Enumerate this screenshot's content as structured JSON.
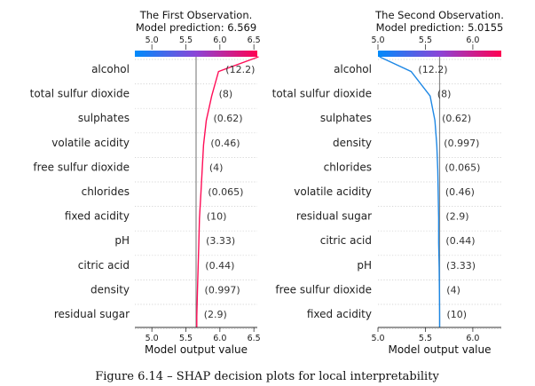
{
  "caption": "Figure 6.14 – SHAP decision plots for local interpretability",
  "chart_data": [
    {
      "type": "line",
      "title_line1": "The First Observation.",
      "title_line2": "Model prediction: 6.569",
      "xlabel": "Model output value",
      "xlim": [
        4.75,
        6.55
      ],
      "xticks": [
        5.0,
        5.5,
        6.0,
        6.5
      ],
      "tick_labels": [
        "5.0",
        "5.5",
        "6.0",
        "6.5"
      ],
      "base_value": 5.65,
      "prediction": 6.569,
      "line_color": "#ff0d57",
      "features": [
        "alcohol",
        "total sulfur dioxide",
        "sulphates",
        "volatile acidity",
        "free sulfur dioxide",
        "chlorides",
        "fixed acidity",
        "pH",
        "citric acid",
        "density",
        "residual sugar"
      ],
      "feature_values": [
        "(12.2)",
        "(8)",
        "(0.62)",
        "(0.46)",
        "(4)",
        "(0.065)",
        "(10)",
        "(3.33)",
        "(0.44)",
        "(0.997)",
        "(2.9)"
      ],
      "cumulative_values": [
        6.569,
        5.98,
        5.88,
        5.8,
        5.76,
        5.74,
        5.72,
        5.7,
        5.69,
        5.68,
        5.67,
        5.66
      ]
    },
    {
      "type": "line",
      "title_line1": "The Second Observation.",
      "title_line2": "Model prediction: 5.0155",
      "xlabel": "Model output value",
      "xlim": [
        5.0,
        6.3
      ],
      "xticks": [
        5.0,
        5.5,
        6.0
      ],
      "tick_labels": [
        "5.0",
        "5.5",
        "6.0"
      ],
      "base_value": 5.65,
      "prediction": 5.0155,
      "line_color": "#1e88e5",
      "features": [
        "alcohol",
        "total sulfur dioxide",
        "sulphates",
        "density",
        "chlorides",
        "volatile acidity",
        "residual sugar",
        "citric acid",
        "pH",
        "free sulfur dioxide",
        "fixed acidity"
      ],
      "feature_values": [
        "(12.2)",
        "(8)",
        "(0.62)",
        "(0.997)",
        "(0.065)",
        "(0.46)",
        "(2.9)",
        "(0.44)",
        "(3.33)",
        "(4)",
        "(10)"
      ],
      "cumulative_values": [
        5.0155,
        5.35,
        5.55,
        5.6,
        5.62,
        5.63,
        5.635,
        5.64,
        5.64,
        5.645,
        5.648,
        5.65
      ]
    }
  ]
}
